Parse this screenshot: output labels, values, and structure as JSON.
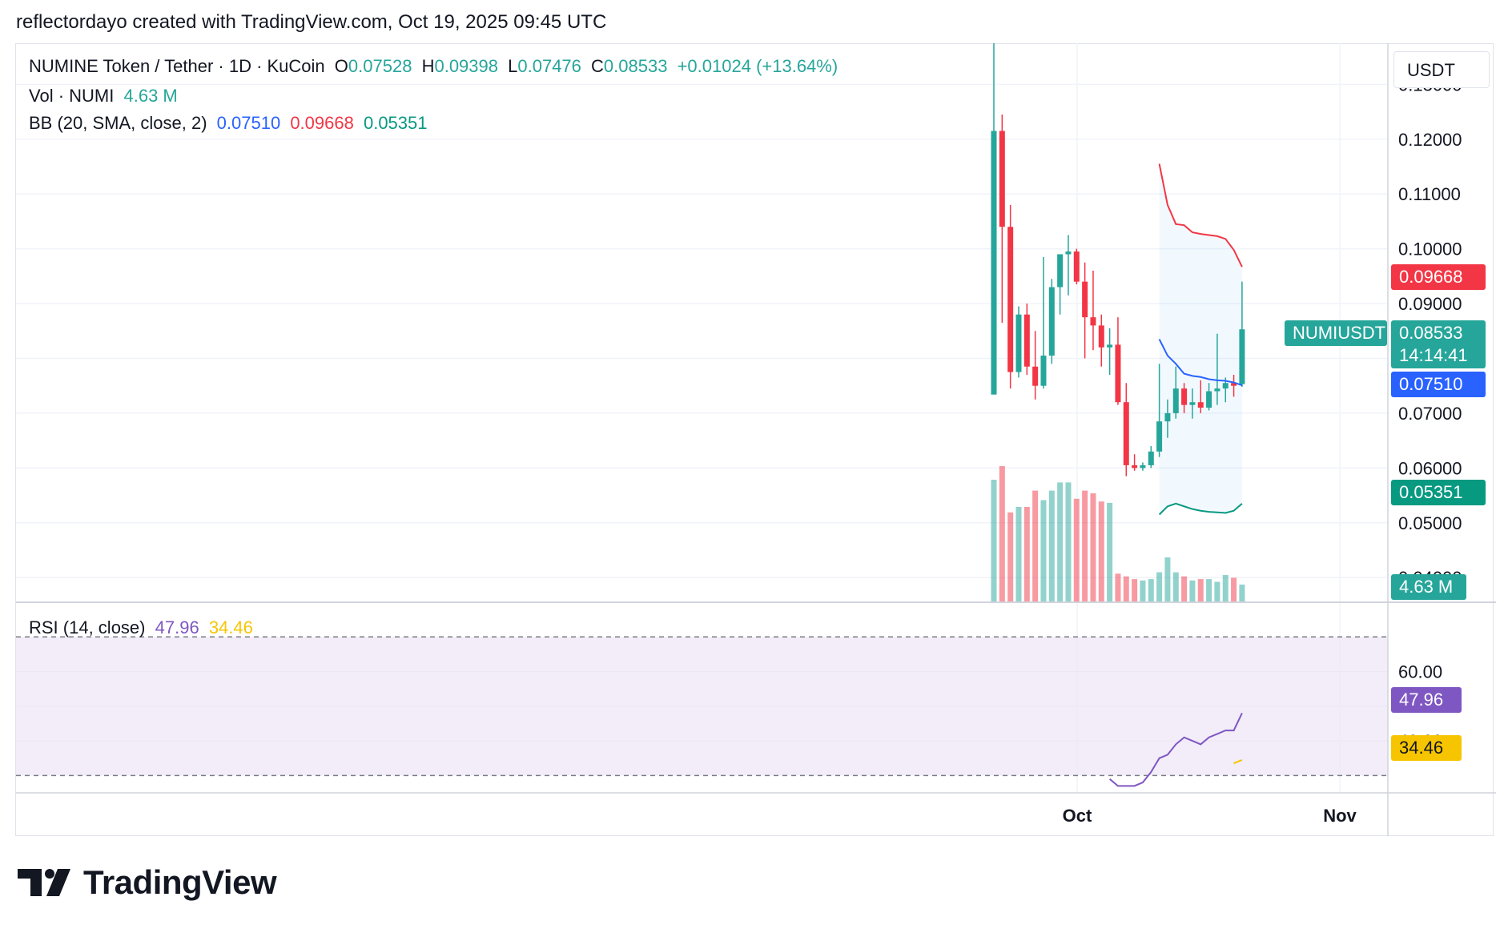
{
  "header": {
    "credit": "reflectordayo created with TradingView.com, Oct 19, 2025 09:45 UTC"
  },
  "legend": {
    "symbol": "NUMINE Token / Tether · 1D · KuCoin",
    "o_label": "O",
    "o": "0.07528",
    "h_label": "H",
    "h": "0.09398",
    "l_label": "L",
    "l": "0.07476",
    "c_label": "C",
    "c": "0.08533",
    "change": "+0.01024 (+13.64%)",
    "vol_label": "Vol · NUMI",
    "vol": "4.63 M",
    "bb_label": "BB (20, SMA, close, 2)",
    "bb_basis": "0.07510",
    "bb_upper": "0.09668",
    "bb_lower": "0.05351",
    "rsi_label": "RSI (14, close)",
    "rsi": "47.96",
    "rsi_ma": "34.46"
  },
  "axis": {
    "currency": "USDT",
    "price_ticks": [
      "0.13000",
      "0.12000",
      "0.11000",
      "0.10000",
      "0.09000",
      "0.07000",
      "0.06000",
      "0.05000",
      "0.04000"
    ],
    "rsi_ticks": [
      "60.00",
      "40.00"
    ],
    "time_ticks": [
      "Oct",
      "Nov"
    ]
  },
  "tags": {
    "bb_upper": "0.09668",
    "symbol": "NUMIUSDT",
    "last_price": "0.08533",
    "countdown": "14:14:41",
    "bb_basis": "0.07510",
    "bb_lower": "0.05351",
    "volume": "4.63 M",
    "rsi": "47.96",
    "rsi_ma": "34.46"
  },
  "colors": {
    "up": "#26a69a",
    "down": "#f23645",
    "bb_basis": "#2962ff",
    "bb_upper": "#f23645",
    "bb_lower": "#089981",
    "rsi": "#7e57c2",
    "rsi_ma": "#f7c500",
    "rsi_band": "#ede7f6"
  },
  "logo": {
    "text": "TradingView"
  },
  "chart_data": {
    "type": "candlestick",
    "price_range": [
      0.0355,
      0.1375
    ],
    "rsi_range": [
      25,
      80
    ],
    "rsi_bands": [
      30,
      70
    ],
    "candles": [
      {
        "o": 0.0734,
        "h": 0.1375,
        "l": 0.0734,
        "c": 0.1215
      },
      {
        "o": 0.1215,
        "h": 0.1245,
        "l": 0.0865,
        "c": 0.104
      },
      {
        "o": 0.104,
        "h": 0.108,
        "l": 0.0745,
        "c": 0.0775
      },
      {
        "o": 0.0775,
        "h": 0.0895,
        "l": 0.0765,
        "c": 0.088
      },
      {
        "o": 0.088,
        "h": 0.09,
        "l": 0.077,
        "c": 0.0785
      },
      {
        "o": 0.0785,
        "h": 0.085,
        "l": 0.0725,
        "c": 0.075
      },
      {
        "o": 0.075,
        "h": 0.0985,
        "l": 0.0745,
        "c": 0.0805
      },
      {
        "o": 0.0805,
        "h": 0.0945,
        "l": 0.079,
        "c": 0.093
      },
      {
        "o": 0.093,
        "h": 0.099,
        "l": 0.088,
        "c": 0.099
      },
      {
        "o": 0.099,
        "h": 0.1025,
        "l": 0.0915,
        "c": 0.0995
      },
      {
        "o": 0.0995,
        "h": 0.1,
        "l": 0.0935,
        "c": 0.094
      },
      {
        "o": 0.094,
        "h": 0.0975,
        "l": 0.08,
        "c": 0.0875
      },
      {
        "o": 0.0875,
        "h": 0.096,
        "l": 0.0815,
        "c": 0.086
      },
      {
        "o": 0.086,
        "h": 0.088,
        "l": 0.0785,
        "c": 0.082
      },
      {
        "o": 0.082,
        "h": 0.0855,
        "l": 0.077,
        "c": 0.0825
      },
      {
        "o": 0.0825,
        "h": 0.0875,
        "l": 0.0715,
        "c": 0.072
      },
      {
        "o": 0.072,
        "h": 0.0755,
        "l": 0.0585,
        "c": 0.0605
      },
      {
        "o": 0.0605,
        "h": 0.0625,
        "l": 0.0595,
        "c": 0.06
      },
      {
        "o": 0.06,
        "h": 0.061,
        "l": 0.0595,
        "c": 0.0605
      },
      {
        "o": 0.0605,
        "h": 0.064,
        "l": 0.06,
        "c": 0.063
      },
      {
        "o": 0.063,
        "h": 0.079,
        "l": 0.062,
        "c": 0.0685
      },
      {
        "o": 0.0685,
        "h": 0.0725,
        "l": 0.0655,
        "c": 0.07
      },
      {
        "o": 0.07,
        "h": 0.0785,
        "l": 0.069,
        "c": 0.0745
      },
      {
        "o": 0.0745,
        "h": 0.0755,
        "l": 0.07,
        "c": 0.0715
      },
      {
        "o": 0.0715,
        "h": 0.0745,
        "l": 0.069,
        "c": 0.072
      },
      {
        "o": 0.072,
        "h": 0.076,
        "l": 0.07,
        "c": 0.071
      },
      {
        "o": 0.071,
        "h": 0.0755,
        "l": 0.0705,
        "c": 0.074
      },
      {
        "o": 0.074,
        "h": 0.0845,
        "l": 0.0715,
        "c": 0.0745
      },
      {
        "o": 0.0745,
        "h": 0.0765,
        "l": 0.072,
        "c": 0.0755
      },
      {
        "o": 0.0755,
        "h": 0.077,
        "l": 0.073,
        "c": 0.075
      },
      {
        "o": 0.0753,
        "h": 0.094,
        "l": 0.0748,
        "c": 0.0853
      }
    ],
    "volume_relative": [
      0.9,
      1.0,
      0.66,
      0.7,
      0.7,
      0.82,
      0.75,
      0.82,
      0.88,
      0.88,
      0.76,
      0.82,
      0.8,
      0.74,
      0.73,
      0.21,
      0.19,
      0.17,
      0.16,
      0.17,
      0.22,
      0.33,
      0.22,
      0.19,
      0.16,
      0.17,
      0.17,
      0.15,
      0.2,
      0.18,
      0.13
    ],
    "bb_upper": [
      0.1155,
      0.108,
      0.1045,
      0.1043,
      0.103,
      0.1027,
      0.1025,
      0.1023,
      0.1018,
      0.0998,
      0.0967
    ],
    "bb_basis": [
      0.0835,
      0.0805,
      0.079,
      0.0772,
      0.0768,
      0.0766,
      0.0762,
      0.076,
      0.0759,
      0.0756,
      0.0751
    ],
    "bb_lower": [
      0.0515,
      0.053,
      0.0535,
      0.053,
      0.0525,
      0.0522,
      0.052,
      0.0519,
      0.0518,
      0.0522,
      0.0535
    ],
    "rsi": [
      29,
      27,
      27,
      27,
      28,
      31,
      35,
      36,
      39,
      41,
      40,
      39,
      41,
      42,
      43,
      43,
      48
    ],
    "rsi_ma": [
      33.5,
      34.5
    ],
    "time_labels": [
      "Oct",
      "Nov"
    ]
  }
}
